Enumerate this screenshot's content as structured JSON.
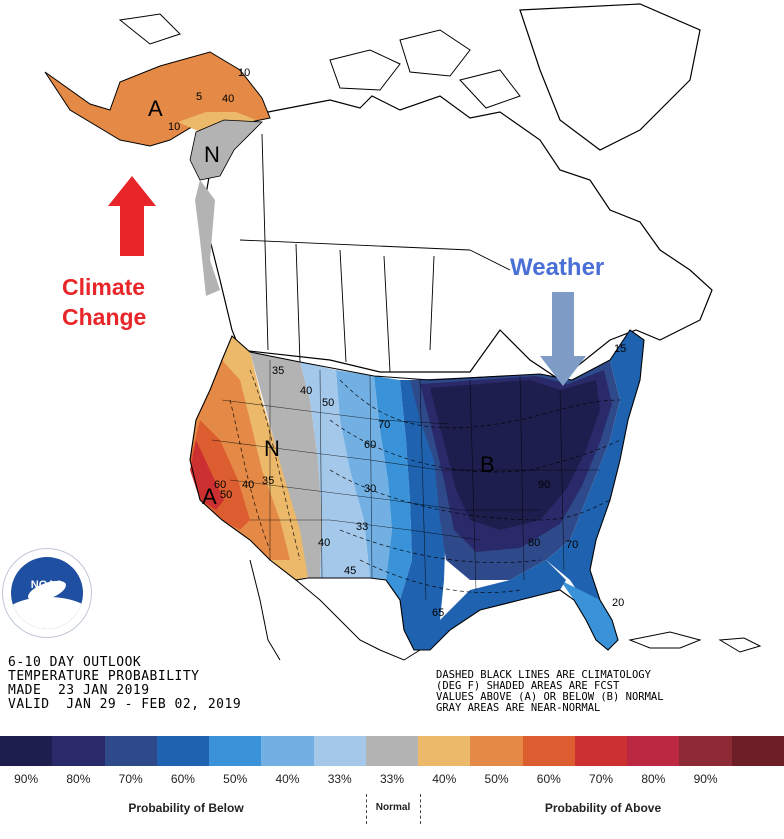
{
  "header": {
    "line1": "6-10 DAY OUTLOOK",
    "line2": "TEMPERATURE PROBABILITY",
    "made": "MADE  23 JAN 2019",
    "valid": "VALID  JAN 29 - FEB 02, 2019"
  },
  "notes": {
    "line1": "DASHED BLACK LINES ARE CLIMATOLOGY",
    "line2": "(DEG F) SHADED AREAS ARE FCST",
    "line3": "VALUES ABOVE (A) OR BELOW (B) NORMAL",
    "line4": "GRAY AREAS ARE NEAR-NORMAL"
  },
  "annotations": {
    "climate_line1": "Climate",
    "climate_line2": "Change",
    "weather": "Weather",
    "climate_color": "#e8262a",
    "weather_color": "#4a6fd6",
    "weather_arrow_color": "#7f9cc6"
  },
  "map_labels": {
    "alaska_above": "A",
    "alaska_normal": "N",
    "west_normal": "N",
    "west_above": "A",
    "east_below": "B"
  },
  "contour_labels": [
    "5",
    "10",
    "40",
    "10",
    "35",
    "40",
    "50",
    "70",
    "60",
    "30",
    "33",
    "40",
    "45",
    "60",
    "50",
    "40",
    "35",
    "90",
    "80",
    "70",
    "65",
    "15",
    "20"
  ],
  "color_scale": {
    "colors": [
      "#1e1e4e",
      "#2a2a6a",
      "#2e4a8a",
      "#1f63b0",
      "#3a93d8",
      "#72b0e4",
      "#a4c8ea",
      "#b3b3b3",
      "#ecb86a",
      "#e48a46",
      "#dc5e30",
      "#cc3030",
      "#bc2842",
      "#8e2a36",
      "#6e1e26"
    ],
    "below_labels": [
      "90%",
      "80%",
      "70%",
      "60%",
      "50%",
      "40%",
      "33%"
    ],
    "above_labels": [
      "33%",
      "40%",
      "50%",
      "60%",
      "70%",
      "80%",
      "90%"
    ],
    "below_title": "Probability of Below",
    "normal_title": "Normal",
    "above_title": "Probability of Above"
  },
  "logo": {
    "text": "NOAA"
  }
}
